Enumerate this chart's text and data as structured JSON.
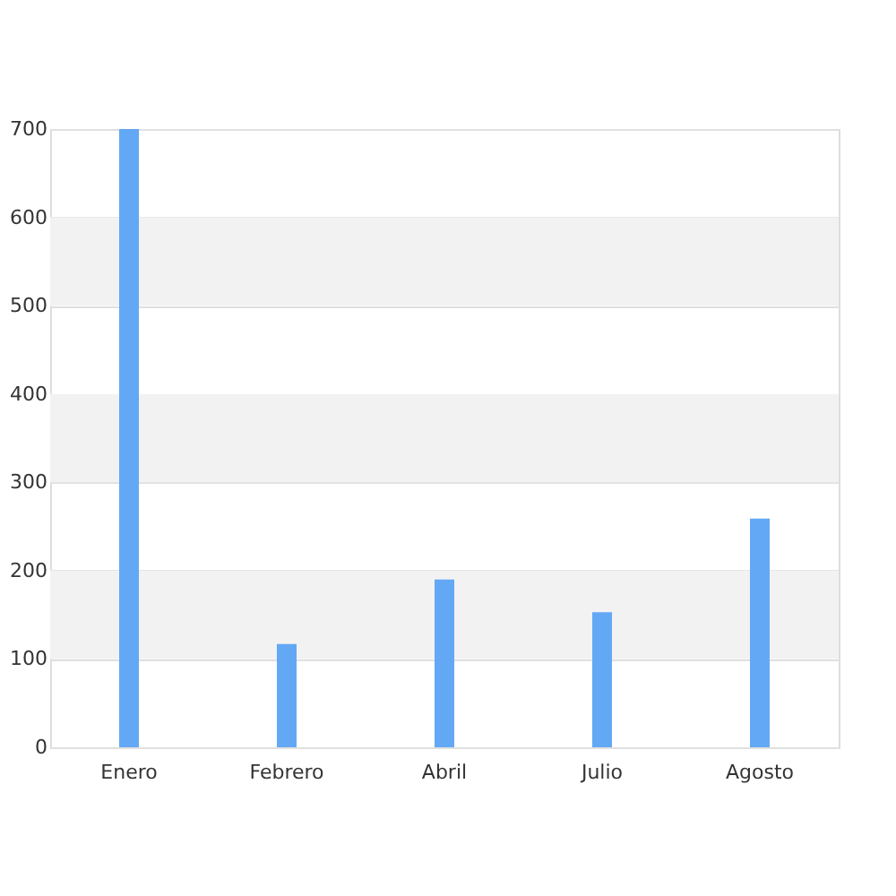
{
  "chart_data": {
    "type": "bar",
    "categories": [
      "Enero",
      "Febrero",
      "Abril",
      "Julio",
      "Agosto"
    ],
    "values": [
      700,
      117,
      190,
      153,
      259
    ],
    "color": "#63a8f5",
    "ylim": [
      0,
      700
    ],
    "yticks": [
      0,
      100,
      200,
      300,
      400,
      500,
      600,
      700
    ],
    "grid": "y",
    "bands": [
      {
        "axis": "y",
        "from": 100,
        "to": 200,
        "color": "#f2f2f2"
      },
      {
        "axis": "y",
        "from": 300,
        "to": 400,
        "color": "#f2f2f2"
      },
      {
        "axis": "y",
        "from": 500,
        "to": 600,
        "color": "#f2f2f2"
      }
    ]
  }
}
